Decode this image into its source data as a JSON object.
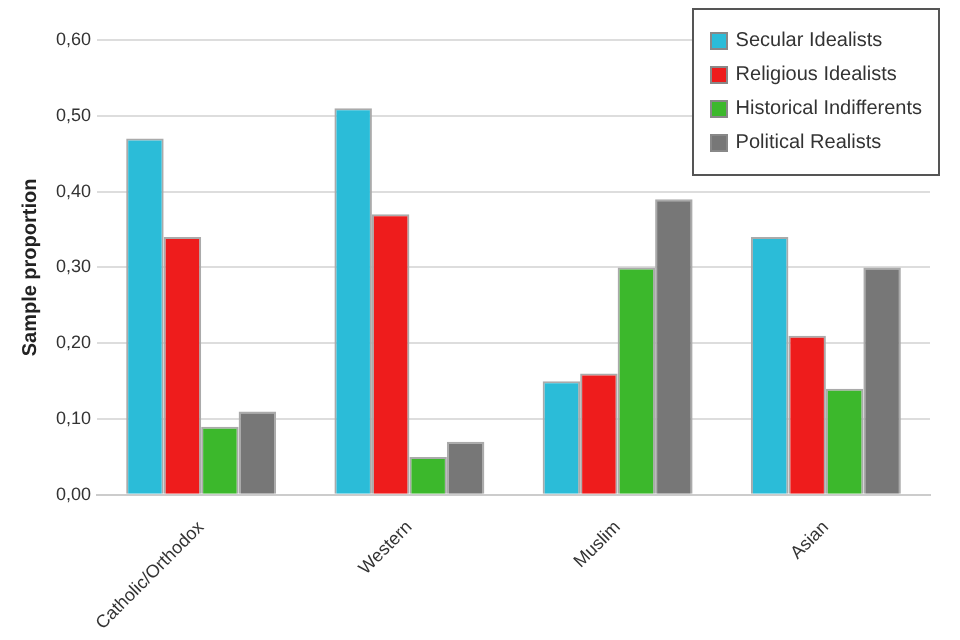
{
  "chart_data": {
    "type": "bar",
    "ylabel": "Sample proportion",
    "categories": [
      "Catholic/Orthodox",
      "Western",
      "Muslim",
      "Asian"
    ],
    "series": [
      {
        "name": "Secular Idealists",
        "color": "#2bbcd8",
        "values": [
          0.47,
          0.51,
          0.15,
          0.34
        ]
      },
      {
        "name": "Religious Idealists",
        "color": "#ee1c1c",
        "values": [
          0.34,
          0.37,
          0.16,
          0.21
        ]
      },
      {
        "name": "Historical Indifferents",
        "color": "#3cb82c",
        "values": [
          0.09,
          0.05,
          0.3,
          0.14
        ]
      },
      {
        "name": "Political Realists",
        "color": "#777777",
        "values": [
          0.11,
          0.07,
          0.39,
          0.3
        ]
      }
    ],
    "ylim": [
      0,
      0.6
    ],
    "yticks": [
      {
        "value": 0,
        "label": "0,00"
      },
      {
        "value": 0.1,
        "label": "0,10"
      },
      {
        "value": 0.2,
        "label": "0,20"
      },
      {
        "value": 0.3,
        "label": "0,30"
      },
      {
        "value": 0.4,
        "label": "0,40"
      },
      {
        "value": 0.5,
        "label": "0,50"
      },
      {
        "value": 0.6,
        "label": "0,60"
      }
    ],
    "grid": "y",
    "legend": "top right"
  }
}
